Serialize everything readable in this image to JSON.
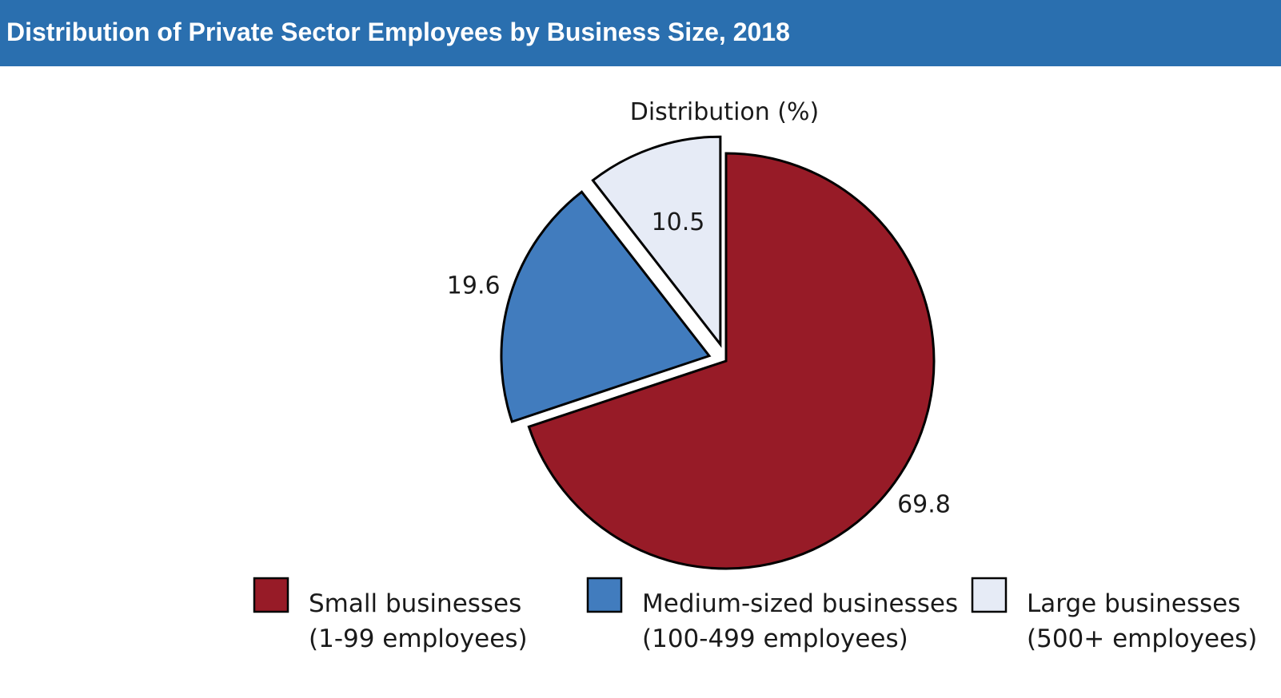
{
  "header": {
    "title": "Distribution of Private Sector Employees by Business Size, 2018"
  },
  "chart_data": {
    "type": "pie",
    "subtitle": "Distribution (%)",
    "exploded": true,
    "legend_position": "bottom",
    "slices": [
      {
        "label": "Small businesses (1-99 employees)",
        "legend_lines": [
          "Small businesses",
          "(1-99 employees)"
        ],
        "value": 69.8,
        "value_label": "69.8",
        "color": "#971b27"
      },
      {
        "label": "Medium-sized businesses (100-499 employees)",
        "legend_lines": [
          "Medium-sized businesses",
          "(100-499 employees)"
        ],
        "value": 19.6,
        "value_label": "19.6",
        "color": "#417cbe"
      },
      {
        "label": "Large businesses (500+ employees)",
        "legend_lines": [
          "Large businesses",
          "(500+ employees)"
        ],
        "value": 10.5,
        "value_label": "10.5",
        "color": "#e6ebf6"
      }
    ]
  }
}
